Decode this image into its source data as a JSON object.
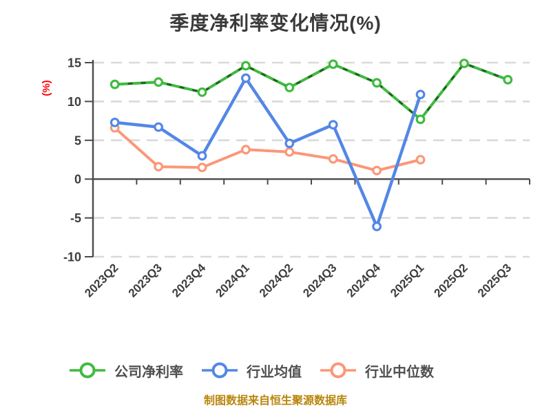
{
  "title": "季度净利率变化情况(%)",
  "chart_data": {
    "type": "line",
    "title": "季度净利率变化情况(%)",
    "ylabel": "(%)",
    "xlabel": "",
    "categories": [
      "2023Q2",
      "2023Q3",
      "2023Q4",
      "2024Q1",
      "2024Q2",
      "2024Q3",
      "2024Q4",
      "2025Q1",
      "2025Q2",
      "2025Q3"
    ],
    "yticks": [
      15,
      10,
      5,
      0,
      -5,
      -10
    ],
    "ylim": [
      -10,
      15
    ],
    "grid": "horizontal-dashed",
    "legend_position": "bottom",
    "series": [
      {
        "name": "公司净利率",
        "color": "#3fbb3f",
        "marker": "open-circle",
        "line_style": "solid-with-dark-dashes",
        "values": [
          12.2,
          12.5,
          11.2,
          14.6,
          11.8,
          14.8,
          12.4,
          7.7,
          14.9,
          12.8
        ]
      },
      {
        "name": "行业均值",
        "color": "#5387e6",
        "marker": "open-circle",
        "line_style": "solid",
        "values": [
          7.3,
          6.7,
          3.0,
          13.0,
          4.6,
          7.0,
          -6.1,
          10.9,
          null,
          null
        ]
      },
      {
        "name": "行业中位数",
        "color": "#fb9778",
        "marker": "open-circle",
        "line_style": "solid",
        "values": [
          6.6,
          1.6,
          1.5,
          3.8,
          3.5,
          2.6,
          1.1,
          2.5,
          null,
          null
        ]
      }
    ],
    "source_note": "制图数据来自恒生聚源数据库",
    "colors": {
      "title": "#3a3a3a",
      "axis": "#4a4a4a",
      "tick_labels": "#3d3d3d",
      "grid": "#d9d9d9",
      "ylabel": "#ff0000",
      "source_note": "#b8860b",
      "legend_text": "#4f4f4f",
      "marker_fill": "#ffffff"
    }
  }
}
